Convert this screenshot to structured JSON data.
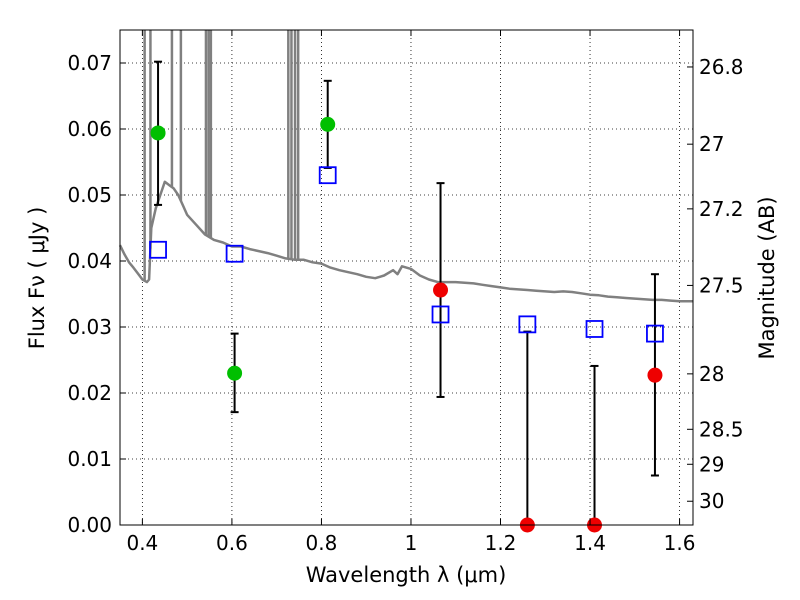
{
  "chart_data": {
    "type": "scatter",
    "xlabel": "Wavelength  λ (μm)",
    "ylabel": "Flux  Fν  ( μJy )",
    "ylabel_right": "Magnitude (AB)",
    "xlim": [
      0.35,
      1.63
    ],
    "ylim": [
      0.0,
      0.075
    ],
    "grid": true,
    "x_ticks": [
      0.4,
      0.6,
      0.8,
      1.0,
      1.2,
      1.4,
      1.6
    ],
    "x_tick_labels": [
      "0.4",
      "0.6",
      "0.8",
      "1",
      "1.2",
      "1.4",
      "1.6"
    ],
    "y_ticks": [
      0.0,
      0.01,
      0.02,
      0.03,
      0.04,
      0.05,
      0.06,
      0.07
    ],
    "y_tick_labels": [
      "0.00",
      "0.01",
      "0.02",
      "0.03",
      "0.04",
      "0.05",
      "0.06",
      "0.07"
    ],
    "mag_ticks": [
      {
        "flux": 0.0694,
        "label": "26.8"
      },
      {
        "flux": 0.0577,
        "label": "27"
      },
      {
        "flux": 0.0479,
        "label": "27.2"
      },
      {
        "flux": 0.0363,
        "label": "27.5"
      },
      {
        "flux": 0.0229,
        "label": "28"
      },
      {
        "flux": 0.0145,
        "label": "28.5"
      },
      {
        "flux": 0.0092,
        "label": "29"
      },
      {
        "flux": 0.0036,
        "label": "30"
      }
    ],
    "series": [
      {
        "style": "green-circle",
        "points": [
          {
            "x": 0.435,
            "y": 0.0594,
            "err_low": 0.0485,
            "err_high": 0.0702
          },
          {
            "x": 0.606,
            "y": 0.023,
            "err_low": 0.0171,
            "err_high": 0.029
          },
          {
            "x": 0.814,
            "y": 0.0607,
            "err_low": 0.0541,
            "err_high": 0.0673
          }
        ]
      },
      {
        "style": "red-circle",
        "points": [
          {
            "x": 1.066,
            "y": 0.0356,
            "err_low": 0.0194,
            "err_high": 0.0518
          },
          {
            "x": 1.26,
            "y": 0.0,
            "err_low": 0.0,
            "err_high": 0.0293
          },
          {
            "x": 1.41,
            "y": 0.0,
            "err_low": 0.0,
            "err_high": 0.0241
          },
          {
            "x": 1.545,
            "y": 0.0227,
            "err_low": 0.0075,
            "err_high": 0.038
          }
        ]
      },
      {
        "style": "blue-open-square",
        "points": [
          {
            "x": 0.435,
            "y": 0.0417
          },
          {
            "x": 0.606,
            "y": 0.0411
          },
          {
            "x": 0.814,
            "y": 0.053
          },
          {
            "x": 1.066,
            "y": 0.0319
          },
          {
            "x": 1.26,
            "y": 0.0304
          },
          {
            "x": 1.41,
            "y": 0.0297
          },
          {
            "x": 1.545,
            "y": 0.029
          }
        ]
      }
    ],
    "model_curve": {
      "style": "gray-line",
      "points": [
        [
          0.35,
          0.0424
        ],
        [
          0.36,
          0.041
        ],
        [
          0.37,
          0.0398
        ],
        [
          0.38,
          0.039
        ],
        [
          0.39,
          0.0381
        ],
        [
          0.4,
          0.0372
        ],
        [
          0.41,
          0.0368
        ],
        [
          0.415,
          0.0372
        ],
        [
          0.42,
          0.045
        ],
        [
          0.43,
          0.048
        ],
        [
          0.44,
          0.05
        ],
        [
          0.45,
          0.052
        ],
        [
          0.46,
          0.0515
        ],
        [
          0.47,
          0.051
        ],
        [
          0.48,
          0.05
        ],
        [
          0.49,
          0.0485
        ],
        [
          0.5,
          0.047
        ],
        [
          0.52,
          0.0455
        ],
        [
          0.54,
          0.044
        ],
        [
          0.56,
          0.0432
        ],
        [
          0.58,
          0.0428
        ],
        [
          0.6,
          0.0422
        ],
        [
          0.62,
          0.0422
        ],
        [
          0.64,
          0.0418
        ],
        [
          0.66,
          0.0415
        ],
        [
          0.68,
          0.0412
        ],
        [
          0.7,
          0.0408
        ],
        [
          0.72,
          0.0404
        ],
        [
          0.74,
          0.0402
        ],
        [
          0.76,
          0.0402
        ],
        [
          0.78,
          0.0398
        ],
        [
          0.8,
          0.0396
        ],
        [
          0.82,
          0.039
        ],
        [
          0.84,
          0.0386
        ],
        [
          0.86,
          0.0383
        ],
        [
          0.88,
          0.038
        ],
        [
          0.9,
          0.0376
        ],
        [
          0.92,
          0.0374
        ],
        [
          0.94,
          0.0378
        ],
        [
          0.96,
          0.0386
        ],
        [
          0.97,
          0.038
        ],
        [
          0.98,
          0.0392
        ],
        [
          1.0,
          0.0388
        ],
        [
          1.02,
          0.0378
        ],
        [
          1.04,
          0.0372
        ],
        [
          1.06,
          0.0368
        ],
        [
          1.08,
          0.0368
        ],
        [
          1.1,
          0.0368
        ],
        [
          1.12,
          0.0367
        ],
        [
          1.14,
          0.0366
        ],
        [
          1.16,
          0.0364
        ],
        [
          1.18,
          0.0362
        ],
        [
          1.2,
          0.036
        ],
        [
          1.22,
          0.0358
        ],
        [
          1.24,
          0.0357
        ],
        [
          1.26,
          0.0356
        ],
        [
          1.28,
          0.0355
        ],
        [
          1.3,
          0.0354
        ],
        [
          1.32,
          0.0353
        ],
        [
          1.34,
          0.0354
        ],
        [
          1.36,
          0.0353
        ],
        [
          1.38,
          0.0351
        ],
        [
          1.4,
          0.0349
        ],
        [
          1.42,
          0.0348
        ],
        [
          1.44,
          0.0346
        ],
        [
          1.46,
          0.0345
        ],
        [
          1.48,
          0.0344
        ],
        [
          1.5,
          0.0343
        ],
        [
          1.52,
          0.0342
        ],
        [
          1.54,
          0.0341
        ],
        [
          1.56,
          0.0341
        ],
        [
          1.58,
          0.034
        ],
        [
          1.6,
          0.0339
        ],
        [
          1.62,
          0.0339
        ],
        [
          1.63,
          0.0339
        ]
      ],
      "spikes": [
        {
          "x": 0.405,
          "top": 0.075
        },
        {
          "x": 0.418,
          "top": 0.075
        },
        {
          "x": 0.466,
          "top": 0.075
        },
        {
          "x": 0.486,
          "top": 0.075
        },
        {
          "x": 0.542,
          "top": 0.075
        },
        {
          "x": 0.548,
          "top": 0.075
        },
        {
          "x": 0.553,
          "top": 0.075
        },
        {
          "x": 0.726,
          "top": 0.075
        },
        {
          "x": 0.733,
          "top": 0.075
        },
        {
          "x": 0.741,
          "top": 0.075
        },
        {
          "x": 0.748,
          "top": 0.075
        }
      ]
    }
  }
}
